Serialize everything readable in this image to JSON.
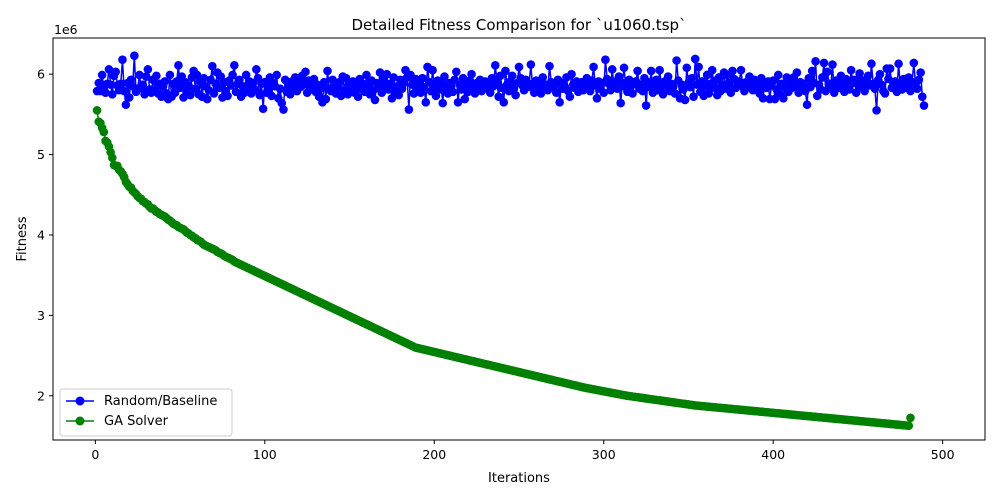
{
  "chart_data": {
    "type": "line",
    "title": "Detailed Fitness Comparison for `u1060.tsp`",
    "xlabel": "Iterations",
    "ylabel": "Fitness",
    "y_offset_text": "1e6",
    "y_multiplier": 1000000,
    "xlim": [
      -25,
      525
    ],
    "ylim": [
      1450000,
      6450000
    ],
    "xticks": [
      0,
      100,
      200,
      300,
      400,
      500
    ],
    "yticks": [
      2000000,
      3000000,
      4000000,
      5000000,
      6000000
    ],
    "ytick_labels": [
      "2",
      "3",
      "4",
      "5",
      "6"
    ],
    "grid": false,
    "legend_position": "lower-left",
    "series": [
      {
        "name": "Random/Baseline",
        "color": "#0000ff",
        "marker": "circle",
        "values": [
          5790000,
          5890000,
          5790000,
          5990000,
          5830000,
          5770000,
          5880000,
          6060000,
          5870000,
          5750000,
          5980000,
          6030000,
          5860000,
          5800000,
          5880000,
          6180000,
          5790000,
          5620000,
          5890000,
          5710000,
          5930000,
          5850000,
          6230000,
          5780000,
          5820000,
          5990000,
          5830000,
          5870000,
          5750000,
          5970000,
          6060000,
          5810000,
          5770000,
          5930000,
          5800000,
          5980000,
          5760000,
          5880000,
          5720000,
          5850000,
          5910000,
          5760000,
          5690000,
          5990000,
          5720000,
          5880000,
          5770000,
          5910000,
          6110000,
          5830000,
          5970000,
          5710000,
          5900000,
          5790000,
          5860000,
          5740000,
          5960000,
          6040000,
          5820000,
          5990000,
          5750000,
          5910000,
          5720000,
          5950000,
          5850000,
          5690000,
          5800000,
          5930000,
          6100000,
          5760000,
          5880000,
          6020000,
          5830000,
          5970000,
          5710000,
          5900000,
          5790000,
          5730000,
          5920000,
          5860000,
          5990000,
          6110000,
          5780000,
          5880000,
          5930000,
          5720000,
          5850000,
          5770000,
          5990000,
          5830000,
          5910000,
          5760000,
          5890000,
          5810000,
          6060000,
          5950000,
          5740000,
          5880000,
          5570000,
          5900000,
          5770000,
          5840000,
          5960000,
          5730000,
          5890000,
          5850000,
          5990000,
          5700000,
          5820000,
          5640000,
          5560000,
          5930000,
          5780000,
          5880000,
          5750000,
          5910000,
          5830000,
          5960000,
          5790000,
          5900000,
          5840000,
          5980000,
          5870000,
          6030000,
          5770000,
          5920000,
          5810000,
          5860000,
          5940000,
          5780000,
          5870000,
          5720000,
          5830000,
          5650000,
          5900000,
          5690000,
          6040000,
          5820000,
          5790000,
          5930000,
          5870000,
          5760000,
          5840000,
          5900000,
          5730000,
          5970000,
          5800000,
          5950000,
          5750000,
          5880000,
          5830000,
          5910000,
          5770000,
          5860000,
          5720000,
          5940000,
          5820000,
          5880000,
          5780000,
          5990000,
          5850000,
          5750000,
          5920000,
          5800000,
          5680000,
          5890000,
          5830000,
          6020000,
          5770000,
          5930000,
          5860000,
          6000000,
          5810000,
          5880000,
          5700000,
          5960000,
          5780000,
          5850000,
          5740000,
          5930000,
          5820000,
          5890000,
          6050000,
          5960000,
          5560000,
          5990000,
          5870000,
          5760000,
          5940000,
          5830000,
          5880000,
          5770000,
          5950000,
          5840000,
          5650000,
          6090000,
          5900000,
          5790000,
          6050000,
          5860000,
          5730000,
          5920000,
          5810000,
          5880000,
          5640000,
          5970000,
          5830000,
          5760000,
          5890000,
          5850000,
          5780000,
          5930000,
          6030000,
          5650000,
          5870000,
          5810000,
          5950000,
          5690000,
          5880000,
          5780000,
          5920000,
          6000000,
          5840000,
          5760000,
          5890000,
          5820000,
          5930000,
          5790000,
          5870000,
          5910000,
          5830000,
          5880000,
          5770000,
          5950000,
          5850000,
          6110000,
          5900000,
          5720000,
          5980000,
          5830000,
          5650000,
          6040000,
          5870000,
          5790000,
          5910000,
          5980000,
          5820000,
          5740000,
          5890000,
          6090000,
          5950000,
          5860000,
          5800000,
          5930000,
          5840000,
          5880000,
          6120000,
          5830000,
          5770000,
          5920000,
          5810000,
          5890000,
          5760000,
          5960000,
          5830000,
          5870000,
          5800000,
          6100000,
          5900000,
          5840000,
          5880000,
          5770000,
          5930000,
          5650000,
          5890000,
          5820000,
          5850000,
          5960000,
          5790000,
          5720000,
          6000000,
          5870000,
          5830000,
          5910000,
          5780000,
          5850000,
          5900000,
          5800000,
          5880000,
          5950000,
          5840000,
          5790000,
          5920000,
          6090000,
          5860000,
          5700000,
          5910000,
          5820000,
          5890000,
          5770000,
          6180000,
          5940000,
          5880000,
          5800000,
          6060000,
          5860000,
          5910000,
          5820000,
          5970000,
          5640000,
          5890000,
          6080000,
          5840000,
          5780000,
          5930000,
          5850000,
          5760000,
          5880000,
          5910000,
          6040000,
          5820000,
          5870000,
          5790000,
          5950000,
          5610000,
          5900000,
          5840000,
          6040000,
          5770000,
          5880000,
          5930000,
          5800000,
          6050000,
          5860000,
          5750000,
          5910000,
          5830000,
          5970000,
          5790000,
          5880000,
          5840000,
          5760000,
          6170000,
          5920000,
          5700000,
          5870000,
          5810000,
          5680000,
          6080000,
          5890000,
          5840000,
          5950000,
          5720000,
          6190000,
          5870000,
          6090000,
          5780000,
          5910000,
          5730000,
          5850000,
          5990000,
          5760000,
          5880000,
          6050000,
          5830000,
          5920000,
          5740000,
          5960000,
          5790000,
          5870000,
          6020000,
          5820000,
          5990000,
          5890000,
          5770000,
          6040000,
          5940000,
          5830000,
          5880000,
          5910000,
          6050000,
          5850000,
          5790000,
          5900000,
          5840000,
          5970000,
          5870000,
          5800000,
          5930000,
          5890000,
          5820000,
          5760000,
          5950000,
          5700000,
          5880000,
          5830000,
          5910000,
          5690000,
          5860000,
          5920000,
          5690000,
          5810000,
          5990000,
          5750000,
          5880000,
          5700000,
          5840000,
          5960000,
          5780000,
          5890000,
          5830000,
          5960000,
          5860000,
          6020000,
          5770000,
          5900000,
          5820000,
          5880000,
          5790000,
          5620000,
          5950000,
          5840000,
          6040000,
          5890000,
          6160000,
          5730000,
          5870000,
          5810000,
          5960000,
          6140000,
          5790000,
          6030000,
          5880000,
          5840000,
          6120000,
          5770000,
          5920000,
          5870000,
          5830000,
          5980000,
          5890000,
          5780000,
          5940000,
          5860000,
          5810000,
          6050000,
          5890000,
          5930000,
          5770000,
          5880000,
          6010000,
          5840000,
          5920000,
          5790000,
          5900000,
          5980000,
          5860000,
          6130000,
          5880000,
          5820000,
          5550000,
          5930000,
          6000000,
          5870000,
          5790000,
          5760000,
          6070000,
          5940000,
          6070000,
          5830000,
          5880000,
          5910000,
          5780000,
          6130000,
          5860000,
          5810000,
          5940000,
          5880000,
          5830000,
          5960000,
          5790000,
          5900000,
          6140000,
          5870000,
          5820000,
          5930000,
          6020000,
          5720000,
          5610000
        ]
      },
      {
        "name": "GA Solver",
        "color": "#008000",
        "marker": "circle",
        "values": [
          5550000,
          5410000,
          5390000,
          5330000,
          5280000,
          5170000,
          5150000,
          5100000,
          5030000,
          4960000,
          4870000,
          4860000,
          4860000,
          4810000,
          4790000,
          4760000,
          4720000,
          4660000,
          4630000,
          4600000,
          4590000,
          4550000,
          4530000,
          4510000,
          4480000,
          4460000,
          4450000,
          4420000,
          4410000,
          4390000,
          4380000,
          4350000,
          4330000,
          4330000,
          4310000,
          4290000,
          4280000,
          4260000,
          4250000,
          4240000,
          4230000,
          4210000,
          4190000,
          4180000,
          4160000,
          4140000,
          4130000,
          4120000,
          4100000,
          4090000,
          4080000,
          4070000,
          4050000,
          4030000,
          4020000,
          4000000,
          3990000,
          3970000,
          3960000,
          3940000,
          3930000,
          3920000,
          3900000,
          3880000,
          3870000,
          3860000,
          3850000,
          3840000,
          3830000,
          3820000,
          3810000,
          3790000,
          3780000,
          3770000,
          3760000,
          3740000,
          3730000,
          3720000,
          3710000,
          3700000,
          3690000,
          3670000,
          3660000,
          3650000,
          3640000,
          3630000,
          3620000,
          3610000,
          3600000,
          3590000,
          3580000,
          3570000,
          3560000,
          3550000,
          3540000,
          3530000,
          3520000,
          3510000,
          3500000,
          3490000,
          3480000,
          3470000,
          3460000,
          3450000,
          3440000,
          3430000,
          3420000,
          3410000,
          3400000,
          3390000,
          3380000,
          3370000,
          3360000,
          3350000,
          3340000,
          3330000,
          3320000,
          3310000,
          3300000,
          3290000,
          3280000,
          3270000,
          3260000,
          3250000,
          3240000,
          3230000,
          3220000,
          3210000,
          3200000,
          3190000,
          3180000,
          3170000,
          3160000,
          3150000,
          3140000,
          3130000,
          3120000,
          3110000,
          3100000,
          3090000,
          3080000,
          3070000,
          3060000,
          3050000,
          3040000,
          3030000,
          3020000,
          3010000,
          3000000,
          2990000,
          2980000,
          2970000,
          2960000,
          2950000,
          2940000,
          2930000,
          2920000,
          2910000,
          2900000,
          2890000,
          2880000,
          2870000,
          2860000,
          2850000,
          2840000,
          2830000,
          2820000,
          2810000,
          2800000,
          2790000,
          2780000,
          2770000,
          2760000,
          2750000,
          2740000,
          2730000,
          2720000,
          2710000,
          2700000,
          2690000,
          2680000,
          2670000,
          2660000,
          2650000,
          2640000,
          2630000,
          2620000,
          2610000,
          2600000,
          2595000,
          2590000,
          2585000,
          2580000,
          2575000,
          2570000,
          2565000,
          2560000,
          2555000,
          2550000,
          2545000,
          2540000,
          2535000,
          2530000,
          2525000,
          2520000,
          2515000,
          2510000,
          2505000,
          2500000,
          2495000,
          2490000,
          2485000,
          2480000,
          2475000,
          2470000,
          2465000,
          2460000,
          2455000,
          2450000,
          2445000,
          2440000,
          2435000,
          2430000,
          2425000,
          2420000,
          2415000,
          2410000,
          2405000,
          2400000,
          2395000,
          2390000,
          2385000,
          2380000,
          2375000,
          2370000,
          2365000,
          2360000,
          2355000,
          2350000,
          2345000,
          2340000,
          2335000,
          2330000,
          2325000,
          2320000,
          2315000,
          2310000,
          2305000,
          2300000,
          2295000,
          2290000,
          2285000,
          2280000,
          2275000,
          2270000,
          2265000,
          2260000,
          2255000,
          2250000,
          2245000,
          2240000,
          2235000,
          2230000,
          2225000,
          2220000,
          2215000,
          2210000,
          2205000,
          2200000,
          2195000,
          2190000,
          2185000,
          2180000,
          2175000,
          2170000,
          2165000,
          2160000,
          2155000,
          2150000,
          2145000,
          2140000,
          2135000,
          2130000,
          2125000,
          2120000,
          2115000,
          2110000,
          2105000,
          2100000,
          2096000,
          2092000,
          2088000,
          2084000,
          2080000,
          2076000,
          2072000,
          2068000,
          2064000,
          2060000,
          2056000,
          2052000,
          2048000,
          2044000,
          2040000,
          2036000,
          2032000,
          2028000,
          2024000,
          2020000,
          2016000,
          2012000,
          2008000,
          2004000,
          2000000,
          1997000,
          1994000,
          1991000,
          1988000,
          1985000,
          1982000,
          1979000,
          1976000,
          1973000,
          1970000,
          1967000,
          1964000,
          1961000,
          1958000,
          1955000,
          1952000,
          1949000,
          1946000,
          1943000,
          1940000,
          1937000,
          1934000,
          1931000,
          1928000,
          1925000,
          1922000,
          1919000,
          1916000,
          1913000,
          1910000,
          1907000,
          1904000,
          1901000,
          1898000,
          1895000,
          1892000,
          1889000,
          1886000,
          1883000,
          1880000,
          1878000,
          1876000,
          1874000,
          1872000,
          1870000,
          1868000,
          1866000,
          1864000,
          1862000,
          1860000,
          1858000,
          1856000,
          1854000,
          1852000,
          1850000,
          1848000,
          1846000,
          1844000,
          1842000,
          1840000,
          1838000,
          1836000,
          1834000,
          1832000,
          1830000,
          1828000,
          1826000,
          1824000,
          1822000,
          1820000,
          1818000,
          1816000,
          1814000,
          1812000,
          1810000,
          1808000,
          1806000,
          1804000,
          1802000,
          1800000,
          1798000,
          1796000,
          1794000,
          1792000,
          1790000,
          1788000,
          1786000,
          1784000,
          1782000,
          1780000,
          1778000,
          1776000,
          1774000,
          1772000,
          1770000,
          1768000,
          1766000,
          1764000,
          1762000,
          1760000,
          1758000,
          1756000,
          1754000,
          1752000,
          1750000,
          1748000,
          1746000,
          1744000,
          1742000,
          1740000,
          1738000,
          1736000,
          1734000,
          1732000,
          1730000,
          1728000,
          1726000,
          1724000,
          1722000,
          1720000,
          1718000,
          1716000,
          1714000,
          1712000,
          1710000,
          1708000,
          1706000,
          1704000,
          1702000,
          1700000,
          1698000,
          1696000,
          1694000,
          1692000,
          1690000,
          1688000,
          1686000,
          1684000,
          1682000,
          1680000,
          1678000,
          1676000,
          1674000,
          1672000,
          1670000,
          1668000,
          1666000,
          1664000,
          1662000,
          1660000,
          1658000,
          1656000,
          1654000,
          1652000,
          1650000,
          1648000,
          1646000,
          1644000,
          1642000,
          1640000,
          1638000,
          1636000,
          1634000,
          1632000,
          1630000,
          1628000,
          1726000
        ]
      }
    ]
  }
}
